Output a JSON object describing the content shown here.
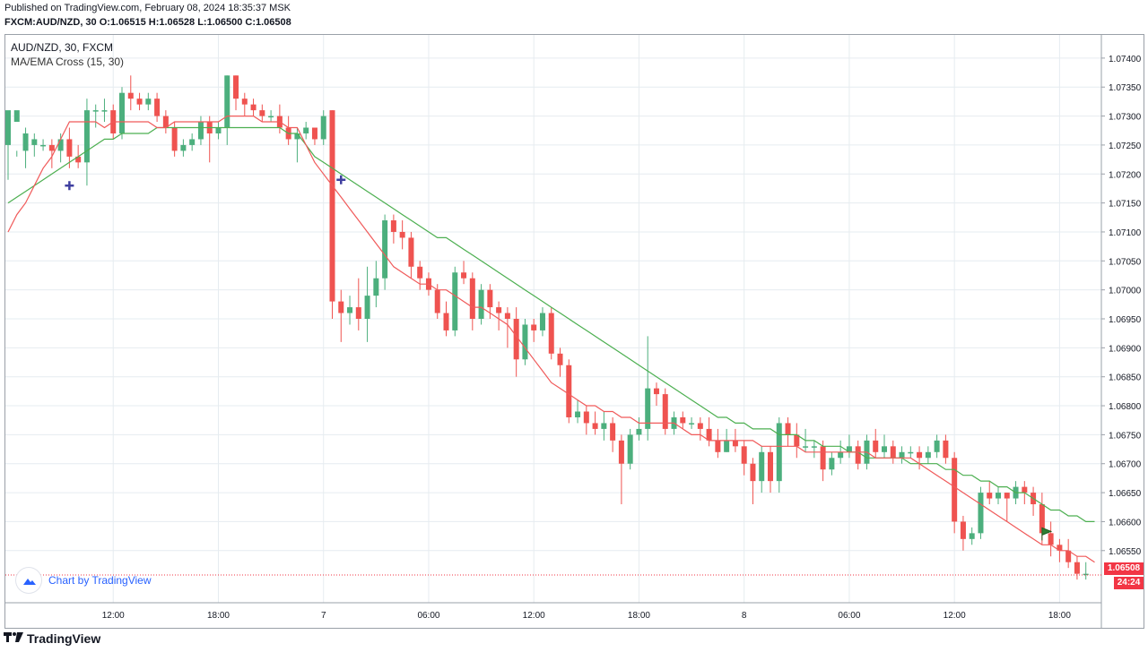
{
  "header": {
    "published": "Published on TradingView.com, February 08, 2024 18:35:37 MSK",
    "ohlc": "FXCM:AUD/NZD, 30 O:1.06515 H:1.06528 L:1.06500 C:1.06508"
  },
  "legend": {
    "symbol": "AUD/NZD, 30, FXCM",
    "indicator": "MA/EMA Cross (15, 30)"
  },
  "badge": {
    "label": "Chart by TradingView"
  },
  "footer": {
    "brand": "TradingView"
  },
  "price_tag": {
    "last": "1.06508",
    "countdown": "24:24"
  },
  "colors": {
    "up": "#4caf7d",
    "down": "#ef5350",
    "ma_fast": "#f05a5a",
    "ma_slow": "#4caf50",
    "cross_marker": "#3f3fa0",
    "grid": "#e6ecf0",
    "last_price_line": "#f23645"
  },
  "chart_data": {
    "type": "candlestick",
    "symbol": "AUD/NZD",
    "timeframe": "30",
    "ylim": [
      1.0646,
      1.0744
    ],
    "y_ticks": [
      "1.07400",
      "1.07350",
      "1.07300",
      "1.07250",
      "1.07200",
      "1.07150",
      "1.07100",
      "1.07050",
      "1.07000",
      "1.06950",
      "1.06900",
      "1.06850",
      "1.06800",
      "1.06750",
      "1.06700",
      "1.06650",
      "1.06600",
      "1.06550"
    ],
    "x_ticks": [
      {
        "bar": 12,
        "label": "12:00"
      },
      {
        "bar": 24,
        "label": "18:00"
      },
      {
        "bar": 36,
        "label": "7"
      },
      {
        "bar": 48,
        "label": "06:00"
      },
      {
        "bar": 60,
        "label": "12:00"
      },
      {
        "bar": 72,
        "label": "18:00"
      },
      {
        "bar": 84,
        "label": "8"
      },
      {
        "bar": 96,
        "label": "06:00"
      },
      {
        "bar": 108,
        "label": "12:00"
      },
      {
        "bar": 120,
        "label": "18:00"
      }
    ],
    "bar_count": 125,
    "candles": [
      [
        1.0725,
        1.0731,
        1.0728,
        1.0719
      ],
      [
        1.0729,
        1.0731,
        1.0724,
        1.0723
      ],
      [
        1.0724,
        1.0727,
        1.0728,
        1.0721
      ],
      [
        1.0725,
        1.0726,
        1.0727,
        1.0723
      ],
      [
        1.0725,
        1.0725,
        1.0726,
        1.0724
      ],
      [
        1.0725,
        1.0724,
        1.0726,
        1.0721
      ],
      [
        1.0724,
        1.0726,
        1.0727,
        1.0722
      ],
      [
        1.0726,
        1.0723,
        1.0728,
        1.0721
      ],
      [
        1.0723,
        1.0722,
        1.0725,
        1.0721
      ],
      [
        1.0722,
        1.0731,
        1.0733,
        1.0718
      ],
      [
        1.0731,
        1.0731,
        1.0732,
        1.0728
      ],
      [
        1.0731,
        1.0731,
        1.0733,
        1.0729
      ],
      [
        1.0731,
        1.0727,
        1.0732,
        1.0726
      ],
      [
        1.0727,
        1.0734,
        1.0735,
        1.0726
      ],
      [
        1.0734,
        1.0733,
        1.0737,
        1.0731
      ],
      [
        1.0733,
        1.0732,
        1.0734,
        1.0731
      ],
      [
        1.0732,
        1.0733,
        1.0734,
        1.0731
      ],
      [
        1.0733,
        1.073,
        1.0734,
        1.0729
      ],
      [
        1.073,
        1.0728,
        1.0731,
        1.0727
      ],
      [
        1.0728,
        1.0724,
        1.0729,
        1.0723
      ],
      [
        1.0724,
        1.0725,
        1.0726,
        1.0723
      ],
      [
        1.0725,
        1.0726,
        1.0727,
        1.0724
      ],
      [
        1.0726,
        1.0729,
        1.073,
        1.0725
      ],
      [
        1.0729,
        1.0727,
        1.073,
        1.0722
      ],
      [
        1.0727,
        1.0728,
        1.0729,
        1.0726
      ],
      [
        1.0728,
        1.0737,
        1.0737,
        1.0725
      ],
      [
        1.0737,
        1.0733,
        1.0737,
        1.0731
      ],
      [
        1.0733,
        1.0732,
        1.0734,
        1.073
      ],
      [
        1.0732,
        1.0731,
        1.0733,
        1.073
      ],
      [
        1.0731,
        1.073,
        1.0732,
        1.0729
      ],
      [
        1.073,
        1.073,
        1.0731,
        1.0729
      ],
      [
        1.073,
        1.0728,
        1.0732,
        1.0727
      ],
      [
        1.0728,
        1.0726,
        1.073,
        1.0725
      ],
      [
        1.0726,
        1.0727,
        1.0728,
        1.0722
      ],
      [
        1.0727,
        1.0728,
        1.0729,
        1.0726
      ],
      [
        1.0728,
        1.0726,
        1.0728,
        1.0725
      ],
      [
        1.0726,
        1.073,
        1.0731,
        1.0725
      ],
      [
        1.0731,
        1.0698,
        1.0731,
        1.0695
      ],
      [
        1.0698,
        1.0696,
        1.07,
        1.0691
      ],
      [
        1.0696,
        1.0697,
        1.0699,
        1.0694
      ],
      [
        1.0697,
        1.0695,
        1.0702,
        1.0693
      ],
      [
        1.0695,
        1.0699,
        1.0704,
        1.0691
      ],
      [
        1.0699,
        1.0702,
        1.0705,
        1.0697
      ],
      [
        1.0702,
        1.0712,
        1.0713,
        1.07
      ],
      [
        1.0712,
        1.071,
        1.0713,
        1.0708
      ],
      [
        1.071,
        1.0709,
        1.0712,
        1.0707
      ],
      [
        1.0709,
        1.0704,
        1.071,
        1.0702
      ],
      [
        1.0704,
        1.0702,
        1.0705,
        1.07
      ],
      [
        1.0702,
        1.07,
        1.0703,
        1.0699
      ],
      [
        1.07,
        1.0696,
        1.0701,
        1.0695
      ],
      [
        1.0696,
        1.0693,
        1.0698,
        1.0692
      ],
      [
        1.0693,
        1.0703,
        1.0704,
        1.0692
      ],
      [
        1.0703,
        1.0702,
        1.0705,
        1.0701
      ],
      [
        1.0702,
        1.0695,
        1.0703,
        1.0693
      ],
      [
        1.0695,
        1.07,
        1.0701,
        1.0694
      ],
      [
        1.07,
        1.0697,
        1.0701,
        1.0695
      ],
      [
        1.0697,
        1.0696,
        1.0698,
        1.0693
      ],
      [
        1.0696,
        1.0695,
        1.0697,
        1.069
      ],
      [
        1.0695,
        1.0688,
        1.0697,
        1.0685
      ],
      [
        1.0688,
        1.0694,
        1.0695,
        1.0687
      ],
      [
        1.0694,
        1.0693,
        1.0695,
        1.0691
      ],
      [
        1.0693,
        1.0696,
        1.0697,
        1.0692
      ],
      [
        1.0696,
        1.0689,
        1.0697,
        1.0688
      ],
      [
        1.0689,
        1.0687,
        1.069,
        1.0685
      ],
      [
        1.0687,
        1.0678,
        1.0688,
        1.0677
      ],
      [
        1.0678,
        1.0679,
        1.0681,
        1.0677
      ],
      [
        1.0679,
        1.0677,
        1.068,
        1.0675
      ],
      [
        1.0677,
        1.0676,
        1.0679,
        1.0675
      ],
      [
        1.0676,
        1.0677,
        1.0679,
        1.0674
      ],
      [
        1.0677,
        1.0674,
        1.0678,
        1.0672
      ],
      [
        1.0674,
        1.067,
        1.0675,
        1.0663
      ],
      [
        1.067,
        1.0675,
        1.0676,
        1.0669
      ],
      [
        1.0675,
        1.0676,
        1.0678,
        1.0674
      ],
      [
        1.0676,
        1.0683,
        1.0692,
        1.0674
      ],
      [
        1.0683,
        1.0682,
        1.0684,
        1.068
      ],
      [
        1.0682,
        1.0676,
        1.0683,
        1.0675
      ],
      [
        1.0676,
        1.0678,
        1.0679,
        1.0675
      ],
      [
        1.0678,
        1.0677,
        1.0679,
        1.0676
      ],
      [
        1.0677,
        1.0677,
        1.0678,
        1.0676
      ],
      [
        1.0677,
        1.0676,
        1.0678,
        1.0674
      ],
      [
        1.0676,
        1.0674,
        1.0678,
        1.0673
      ],
      [
        1.0674,
        1.0672,
        1.0676,
        1.0671
      ],
      [
        1.0672,
        1.0674,
        1.0676,
        1.0672
      ],
      [
        1.0674,
        1.0673,
        1.0676,
        1.0672
      ],
      [
        1.0673,
        1.067,
        1.0674,
        1.0668
      ],
      [
        1.067,
        1.0667,
        1.0671,
        1.0663
      ],
      [
        1.0667,
        1.0672,
        1.0673,
        1.0665
      ],
      [
        1.0672,
        1.0667,
        1.0673,
        1.0665
      ],
      [
        1.0667,
        1.0677,
        1.0678,
        1.0665
      ],
      [
        1.0677,
        1.0675,
        1.0678,
        1.0673
      ],
      [
        1.0675,
        1.0673,
        1.0677,
        1.0671
      ],
      [
        1.0673,
        1.0673,
        1.0676,
        1.0672
      ],
      [
        1.0673,
        1.0673,
        1.0674,
        1.0671
      ],
      [
        1.0673,
        1.0669,
        1.0674,
        1.0667
      ],
      [
        1.0669,
        1.0671,
        1.0672,
        1.0668
      ],
      [
        1.0671,
        1.0672,
        1.0674,
        1.067
      ],
      [
        1.0672,
        1.0673,
        1.0675,
        1.0671
      ],
      [
        1.0673,
        1.067,
        1.0674,
        1.0669
      ],
      [
        1.067,
        1.0674,
        1.0675,
        1.0669
      ],
      [
        1.0674,
        1.0672,
        1.0676,
        1.0671
      ],
      [
        1.0672,
        1.0673,
        1.0675,
        1.0671
      ],
      [
        1.0673,
        1.0671,
        1.0674,
        1.067
      ],
      [
        1.0671,
        1.0672,
        1.0673,
        1.067
      ],
      [
        1.0672,
        1.0672,
        1.0673,
        1.0671
      ],
      [
        1.0672,
        1.0671,
        1.0673,
        1.0669
      ],
      [
        1.0671,
        1.0672,
        1.0673,
        1.067
      ],
      [
        1.0672,
        1.0674,
        1.0675,
        1.0671
      ],
      [
        1.0674,
        1.0671,
        1.0675,
        1.067
      ],
      [
        1.0671,
        1.066,
        1.0672,
        1.0658
      ],
      [
        1.066,
        1.0657,
        1.0661,
        1.0655
      ],
      [
        1.0657,
        1.0658,
        1.0659,
        1.0656
      ],
      [
        1.0658,
        1.0665,
        1.0666,
        1.0657
      ],
      [
        1.0665,
        1.0664,
        1.0667,
        1.0663
      ],
      [
        1.0664,
        1.0665,
        1.0666,
        1.0663
      ],
      [
        1.0665,
        1.0664,
        1.0665,
        1.066
      ],
      [
        1.0664,
        1.0666,
        1.0667,
        1.0663
      ],
      [
        1.0666,
        1.0665,
        1.0667,
        1.0663
      ],
      [
        1.0665,
        1.0663,
        1.0666,
        1.0661
      ],
      [
        1.0663,
        1.0658,
        1.0665,
        1.0656
      ],
      [
        1.0658,
        1.0656,
        1.066,
        1.0654
      ],
      [
        1.0656,
        1.0655,
        1.0657,
        1.0653
      ],
      [
        1.0655,
        1.0653,
        1.0657,
        1.0652
      ],
      [
        1.0653,
        1.0651,
        1.0654,
        1.065
      ],
      [
        1.0651,
        1.0651,
        1.0653,
        1.065
      ]
    ],
    "ma_fast": [
      1.071,
      1.0713,
      1.0715,
      1.0718,
      1.0721,
      1.0723,
      1.0726,
      1.0729,
      1.0729,
      1.0729,
      1.0729,
      1.0728,
      1.0729,
      1.0729,
      1.0729,
      1.0729,
      1.0729,
      1.0728,
      1.0728,
      1.0729,
      1.0729,
      1.0729,
      1.0729,
      1.0729,
      1.0729,
      1.073,
      1.073,
      1.073,
      1.073,
      1.0729,
      1.0729,
      1.0729,
      1.0728,
      1.0728,
      1.0725,
      1.0722,
      1.072,
      1.0718,
      1.0716,
      1.0714,
      1.0712,
      1.071,
      1.0708,
      1.0706,
      1.0704,
      1.0703,
      1.0702,
      1.0701,
      1.0701,
      1.07,
      1.07,
      1.0699,
      1.0698,
      1.0697,
      1.0697,
      1.0696,
      1.0695,
      1.0694,
      1.0692,
      1.069,
      1.0688,
      1.0686,
      1.0684,
      1.0683,
      1.0682,
      1.0681,
      1.068,
      1.068,
      1.0679,
      1.0679,
      1.0678,
      1.0678,
      1.0677,
      1.0677,
      1.0677,
      1.0677,
      1.0677,
      1.0676,
      1.0675,
      1.0675,
      1.0674,
      1.0674,
      1.0674,
      1.0674,
      1.0674,
      1.0674,
      1.0673,
      1.0673,
      1.0673,
      1.0673,
      1.0673,
      1.0672,
      1.0672,
      1.0672,
      1.0672,
      1.0672,
      1.0672,
      1.0672,
      1.0672,
      1.0671,
      1.0671,
      1.0671,
      1.0671,
      1.0671,
      1.067,
      1.0669,
      1.0668,
      1.0667,
      1.0666,
      1.0665,
      1.0664,
      1.0663,
      1.0662,
      1.0661,
      1.066,
      1.0659,
      1.0658,
      1.0657,
      1.0656,
      1.0656,
      1.0655,
      1.0655,
      1.0654,
      1.0654,
      1.0653
    ],
    "ma_slow": [
      1.0715,
      1.0716,
      1.0717,
      1.0718,
      1.0719,
      1.072,
      1.0721,
      1.0722,
      1.0723,
      1.0724,
      1.0725,
      1.0726,
      1.0726,
      1.0727,
      1.0727,
      1.0727,
      1.0727,
      1.0728,
      1.0728,
      1.0728,
      1.0728,
      1.0728,
      1.0728,
      1.0728,
      1.0728,
      1.0728,
      1.0728,
      1.0728,
      1.0728,
      1.0728,
      1.0728,
      1.0728,
      1.0727,
      1.0727,
      1.0725,
      1.0723,
      1.0722,
      1.0721,
      1.072,
      1.0719,
      1.0718,
      1.0717,
      1.0716,
      1.0715,
      1.0714,
      1.0713,
      1.0712,
      1.0711,
      1.071,
      1.0709,
      1.0709,
      1.0708,
      1.0707,
      1.0706,
      1.0705,
      1.0704,
      1.0703,
      1.0702,
      1.0701,
      1.07,
      1.0699,
      1.0698,
      1.0697,
      1.0696,
      1.0695,
      1.0694,
      1.0693,
      1.0692,
      1.0691,
      1.069,
      1.0689,
      1.0688,
      1.0687,
      1.0686,
      1.0685,
      1.0684,
      1.0683,
      1.0682,
      1.0681,
      1.068,
      1.0679,
      1.0678,
      1.0678,
      1.0677,
      1.0677,
      1.0676,
      1.0676,
      1.0676,
      1.0675,
      1.0675,
      1.0675,
      1.0674,
      1.0674,
      1.0673,
      1.0673,
      1.0673,
      1.0672,
      1.0672,
      1.0671,
      1.0671,
      1.0671,
      1.0671,
      1.0671,
      1.067,
      1.067,
      1.067,
      1.067,
      1.0669,
      1.0669,
      1.0668,
      1.0668,
      1.0667,
      1.0667,
      1.0666,
      1.0666,
      1.0665,
      1.0665,
      1.0664,
      1.0663,
      1.0662,
      1.0662,
      1.0661,
      1.0661,
      1.066,
      1.066
    ],
    "crosses": [
      {
        "bar": 7,
        "price": 1.0718
      },
      {
        "bar": 38,
        "price": 1.0719
      }
    ],
    "flag": {
      "bar": 118,
      "price": 1.0658
    },
    "last_price": 1.06508
  }
}
